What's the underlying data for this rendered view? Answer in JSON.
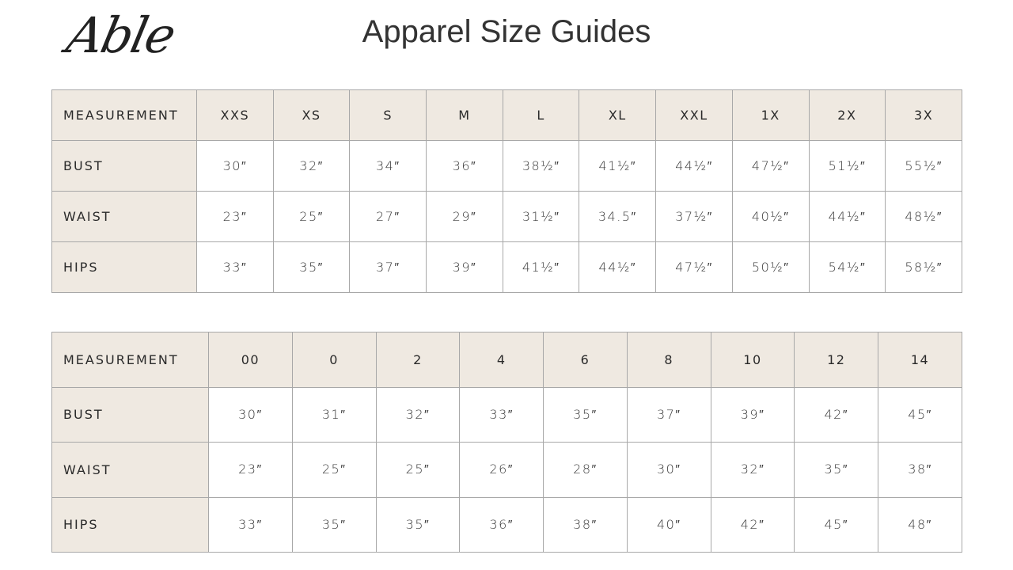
{
  "header": {
    "logo": "Able",
    "title": "Apparel Size Guides"
  },
  "colors": {
    "header_bg": "#efe9e1",
    "border": "#a8a8a8",
    "text": "#333333"
  },
  "tables": [
    {
      "columns": [
        "MEASUREMENT",
        "XXS",
        "XS",
        "S",
        "M",
        "L",
        "XL",
        "XXL",
        "1X",
        "2X",
        "3X"
      ],
      "rows": [
        {
          "label": "BUST",
          "values": [
            "30″",
            "32″",
            "34″",
            "36″",
            "38½″",
            "41½″",
            "44½″",
            "47½″",
            "51½″",
            "55½″"
          ]
        },
        {
          "label": "WAIST",
          "values": [
            "23″",
            "25″",
            "27″",
            "29″",
            "31½″",
            "34.5″",
            "37½″",
            "40½″",
            "44½″",
            "48½″"
          ]
        },
        {
          "label": "HIPS",
          "values": [
            "33″",
            "35″",
            "37″",
            "39″",
            "41½″",
            "44½″",
            "47½″",
            "50½″",
            "54½″",
            "58½″"
          ]
        }
      ]
    },
    {
      "columns": [
        "MEASUREMENT",
        "00",
        "0",
        "2",
        "4",
        "6",
        "8",
        "10",
        "12",
        "14"
      ],
      "rows": [
        {
          "label": "BUST",
          "values": [
            "30″",
            "31″",
            "32″",
            "33″",
            "35″",
            "37″",
            "39″",
            "42″",
            "45″"
          ]
        },
        {
          "label": "WAIST",
          "values": [
            "23″",
            "25″",
            "25″",
            "26″",
            "28″",
            "30″",
            "32″",
            "35″",
            "38″"
          ]
        },
        {
          "label": "HIPS",
          "values": [
            "33″",
            "35″",
            "35″",
            "36″",
            "38″",
            "40″",
            "42″",
            "45″",
            "48″"
          ]
        }
      ]
    }
  ]
}
